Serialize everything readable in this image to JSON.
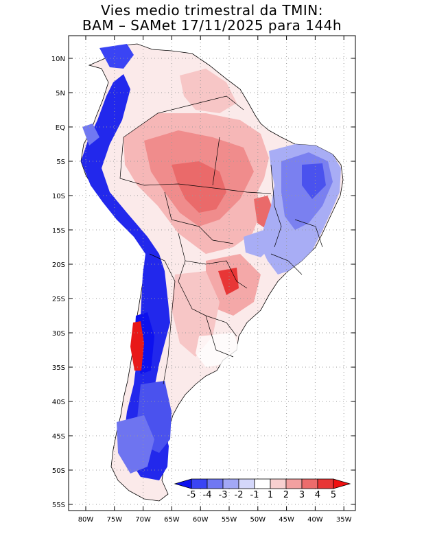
{
  "title_line1": "Vies medio trimestral da TMIN:",
  "title_line2": "BAM – SAMet 17/11/2025  para 144h",
  "lat_labels": [
    "10N",
    "5N",
    "EQ",
    "5S",
    "10S",
    "15S",
    "20S",
    "25S",
    "30S",
    "35S",
    "40S",
    "45S",
    "50S",
    "55S"
  ],
  "lon_labels": [
    "80W",
    "75W",
    "70W",
    "65W",
    "60W",
    "55W",
    "50W",
    "45W",
    "40W",
    "35W"
  ],
  "colorbar": {
    "labels": [
      "-5",
      "-4",
      "-3",
      "-2",
      "-1",
      "1",
      "2",
      "3",
      "4",
      "5"
    ],
    "colors": [
      "#0d11ee",
      "#3a44f4",
      "#7078f2",
      "#a2a8f6",
      "#d4d7fa",
      "#ffffff",
      "#f8d0d0",
      "#f2a0a0",
      "#ec6c6c",
      "#e83636",
      "#f01010"
    ]
  }
}
